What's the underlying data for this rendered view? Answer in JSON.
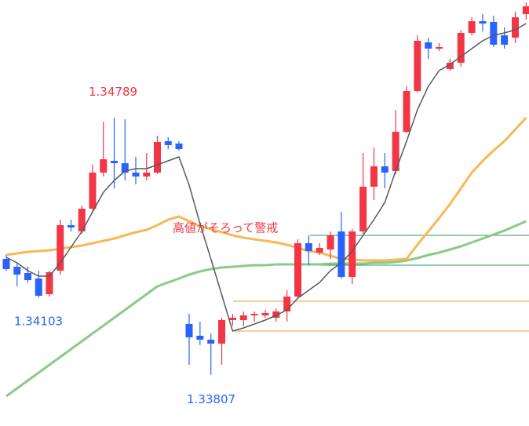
{
  "chart_data": {
    "type": "candlestick",
    "ylim": [
      1.33611,
      1.3524
    ],
    "up_color": "#f23645",
    "down_color": "#2962ff",
    "open": [
      1.3425,
      1.3422,
      1.34196,
      1.34175,
      1.34115,
      1.34205,
      1.34379,
      1.34355,
      1.34442,
      1.3458,
      1.34625,
      1.34616,
      1.3458,
      1.34565,
      1.3458,
      1.347,
      1.34691,
      1.34001,
      1.33956,
      1.33941,
      1.33926,
      1.34016,
      1.34016,
      1.34034,
      1.34034,
      1.34025,
      1.34049,
      1.34106,
      1.3431,
      1.34274,
      1.34286,
      1.34355,
      1.34181,
      1.34355,
      1.34526,
      1.34604,
      1.34586,
      1.34736,
      1.34892,
      1.35078,
      1.35054,
      1.34976,
      1.35,
      1.35114,
      1.35159,
      1.35156,
      1.35105,
      1.35096,
      1.35186
    ],
    "high": [
      1.34265,
      1.34235,
      1.3422,
      1.34205,
      1.34205,
      1.344,
      1.344,
      1.34454,
      1.3461,
      1.34775,
      1.34789,
      1.34784,
      1.3464,
      1.34655,
      1.34721,
      1.34715,
      1.347,
      1.3404,
      1.3401,
      1.33965,
      1.34025,
      1.3404,
      1.34049,
      1.34049,
      1.34055,
      1.34061,
      1.3413,
      1.34325,
      1.3434,
      1.3431,
      1.34355,
      1.3443,
      1.34364,
      1.34655,
      1.34676,
      1.34655,
      1.3482,
      1.3491,
      1.35105,
      1.35096,
      1.35075,
      1.35015,
      1.35126,
      1.35174,
      1.35186,
      1.3518,
      1.35135,
      1.35195,
      1.35231
    ],
    "low": [
      1.34205,
      1.34145,
      1.3416,
      1.34103,
      1.34106,
      1.3419,
      1.34355,
      1.34346,
      1.3443,
      1.34565,
      1.3452,
      1.3455,
      1.34535,
      1.3455,
      1.34574,
      1.3467,
      1.34664,
      1.33845,
      1.3392,
      1.33807,
      1.33845,
      1.33995,
      1.33992,
      1.3401,
      1.34025,
      1.3401,
      1.3401,
      1.341,
      1.34226,
      1.34265,
      1.3425,
      1.34175,
      1.34154,
      1.34346,
      1.34475,
      1.3452,
      1.34574,
      1.3473,
      1.34886,
      1.35015,
      1.35045,
      1.3497,
      1.34985,
      1.35105,
      1.3512,
      1.3506,
      1.35054,
      1.35075,
      1.35165
    ],
    "close": [
      1.34211,
      1.3419,
      1.34169,
      1.34109,
      1.34199,
      1.34379,
      1.3437,
      1.34442,
      1.3458,
      1.34631,
      1.34616,
      1.3458,
      1.34565,
      1.3458,
      1.34697,
      1.34685,
      1.3467,
      1.3395,
      1.33941,
      1.33926,
      1.34016,
      1.34025,
      1.34034,
      1.3404,
      1.34043,
      1.34049,
      1.34106,
      1.3431,
      1.3428,
      1.34292,
      1.3434,
      1.34181,
      1.34355,
      1.34526,
      1.34604,
      1.3458,
      1.34736,
      1.34892,
      1.35084,
      1.35054,
      1.3506,
      1.35,
      1.35114,
      1.35159,
      1.3515,
      1.35069,
      1.35069,
      1.35174,
      1.35216
    ],
    "series": [
      {
        "color": "#555a60",
        "values": [
          1.34256,
          1.34235,
          1.34205,
          1.34184,
          1.34184,
          1.34235,
          1.34295,
          1.34355,
          1.3443,
          1.34505,
          1.3455,
          1.34586,
          1.34595,
          1.34595,
          1.3461,
          1.34625,
          1.3464,
          1.34532,
          1.34385,
          1.3425,
          1.34112,
          1.33974,
          1.33986,
          1.34001,
          1.34016,
          1.34034,
          1.34055,
          1.341,
          1.3413,
          1.3416,
          1.34205,
          1.34235,
          1.3428,
          1.3434,
          1.344,
          1.34466,
          1.34586,
          1.347,
          1.3482,
          1.3491,
          1.3497,
          1.34994,
          1.35024,
          1.35054,
          1.35084,
          1.35105,
          1.35114,
          1.35126,
          1.3515
        ]
      },
      {
        "color": "#f7b955",
        "values": [
          1.34265,
          1.34271,
          1.34277,
          1.3428,
          1.34283,
          1.34289,
          1.34295,
          1.34301,
          1.3431,
          1.34319,
          1.34328,
          1.3434,
          1.34352,
          1.34361,
          1.34379,
          1.344,
          1.34412,
          1.34394,
          1.34376,
          1.34364,
          1.34352,
          1.3434,
          1.34331,
          1.34325,
          1.34319,
          1.34313,
          1.34304,
          1.34292,
          1.3428,
          1.34274,
          1.34262,
          1.3425,
          1.34247,
          1.34244,
          1.34244,
          1.34244,
          1.34247,
          1.3425,
          1.34304,
          1.34355,
          1.34406,
          1.3446,
          1.3452,
          1.3458,
          1.34625,
          1.34664,
          1.347,
          1.34745,
          1.3479
        ]
      },
      {
        "color": "#8cc98a",
        "values": [
          1.33725,
          1.33755,
          1.33785,
          1.33815,
          1.33845,
          1.33875,
          1.33905,
          1.33935,
          1.33965,
          1.33995,
          1.34025,
          1.34055,
          1.34085,
          1.34115,
          1.34145,
          1.3416,
          1.34175,
          1.3419,
          1.34202,
          1.34211,
          1.34217,
          1.3422,
          1.34223,
          1.34226,
          1.34226,
          1.34229,
          1.34229,
          1.34229,
          1.34229,
          1.34229,
          1.34232,
          1.34232,
          1.34232,
          1.34232,
          1.34235,
          1.34235,
          1.34238,
          1.34244,
          1.34253,
          1.34265,
          1.34274,
          1.34286,
          1.34298,
          1.34313,
          1.34328,
          1.34343,
          1.34358,
          1.34376,
          1.34394
        ]
      }
    ],
    "levels": [
      {
        "value": 1.3434,
        "color": "#2e9a5e"
      },
      {
        "value": 1.34226,
        "color": "#2e9a5e"
      },
      {
        "value": 1.34088,
        "color": "#f29b38"
      },
      {
        "value": 1.33974,
        "color": "#f29b38"
      }
    ],
    "annotations": [
      {
        "value": 1.34789,
        "color": "#f23645"
      },
      {
        "value": 1.34103,
        "color": "#2962ff"
      },
      {
        "value": 1.33807,
        "color": "#2962ff"
      }
    ],
    "note": {
      "text": "高値がそろって警戒",
      "color": "#f23645"
    }
  }
}
